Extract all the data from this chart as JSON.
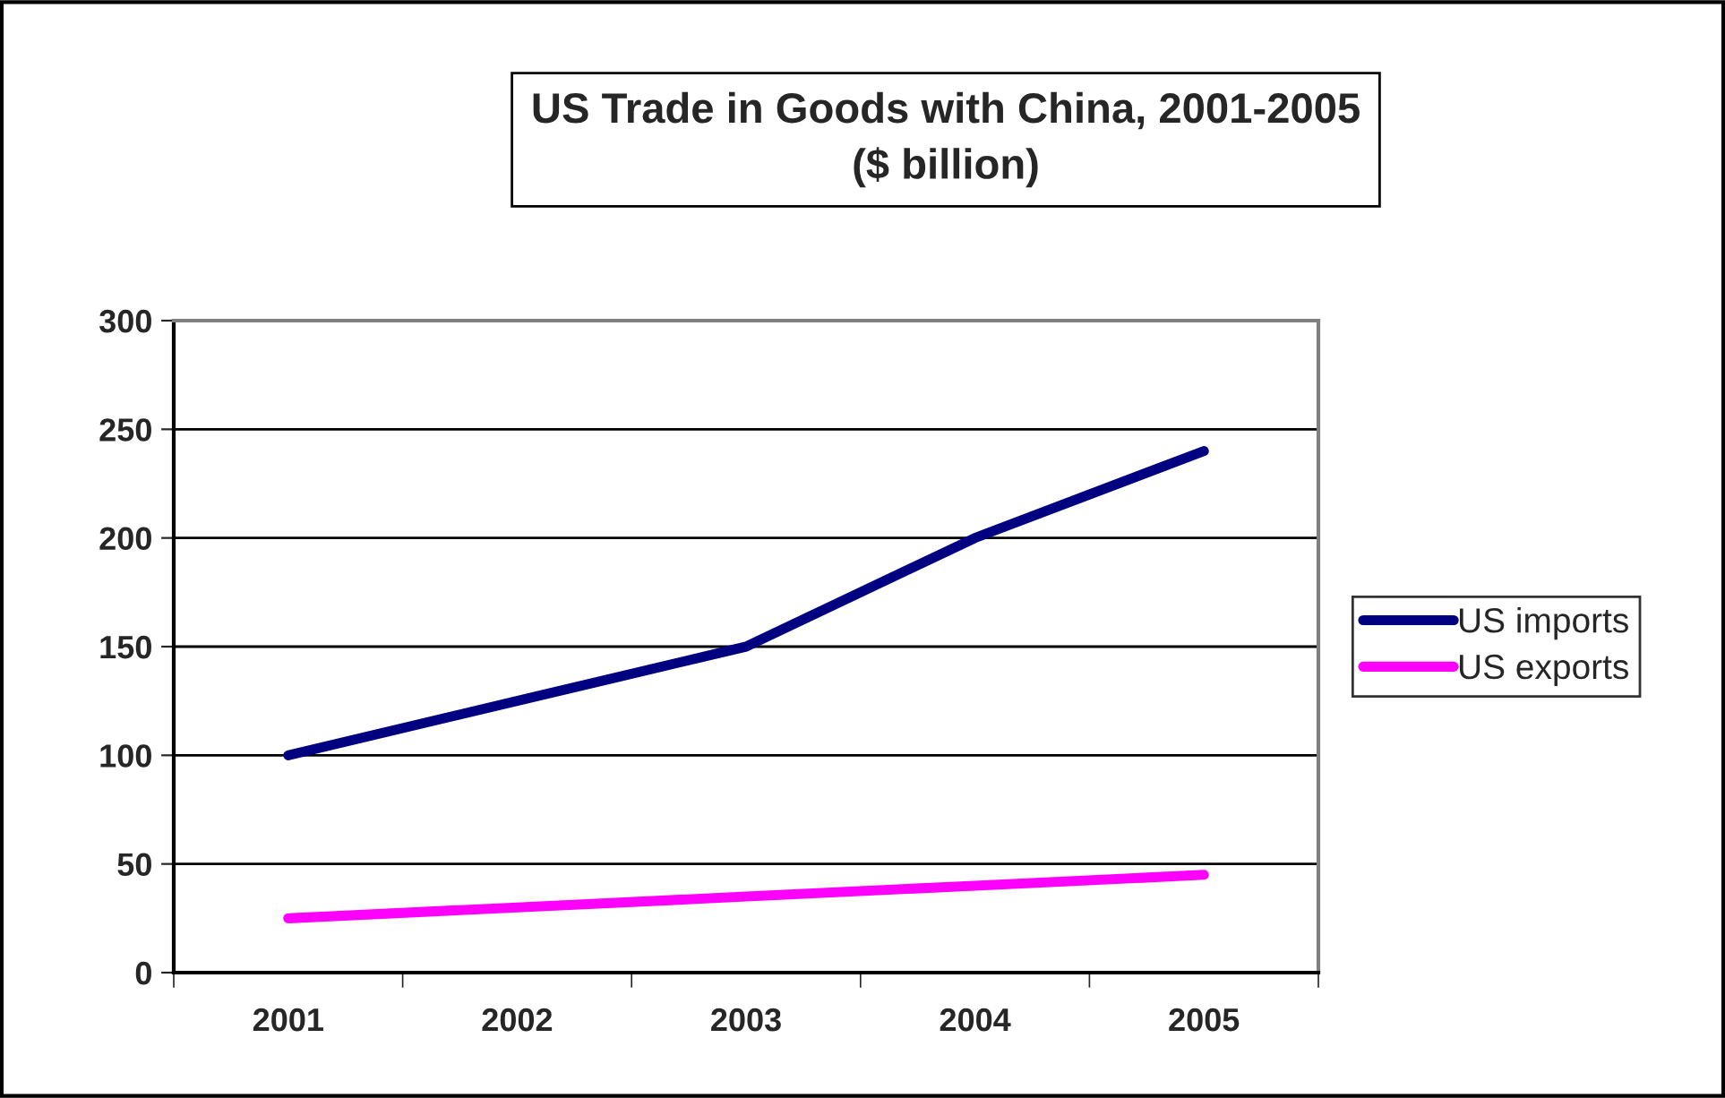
{
  "chart_data": {
    "type": "line",
    "title": "US Trade in Goods with China, 2001-2005\n($ billion)",
    "categories": [
      "2001",
      "2002",
      "2003",
      "2004",
      "2005"
    ],
    "series": [
      {
        "name": "US imports",
        "color": "#000080",
        "values": [
          100,
          125,
          150,
          200,
          240
        ]
      },
      {
        "name": "US exports",
        "color": "#ff00ff",
        "values": [
          25,
          30,
          35,
          40,
          45
        ]
      }
    ],
    "ylim": [
      0,
      300
    ],
    "yticks": [
      0,
      50,
      100,
      150,
      200,
      250,
      300
    ],
    "grid": "y",
    "legend": "right",
    "marker": "none",
    "line_style": "solid"
  }
}
